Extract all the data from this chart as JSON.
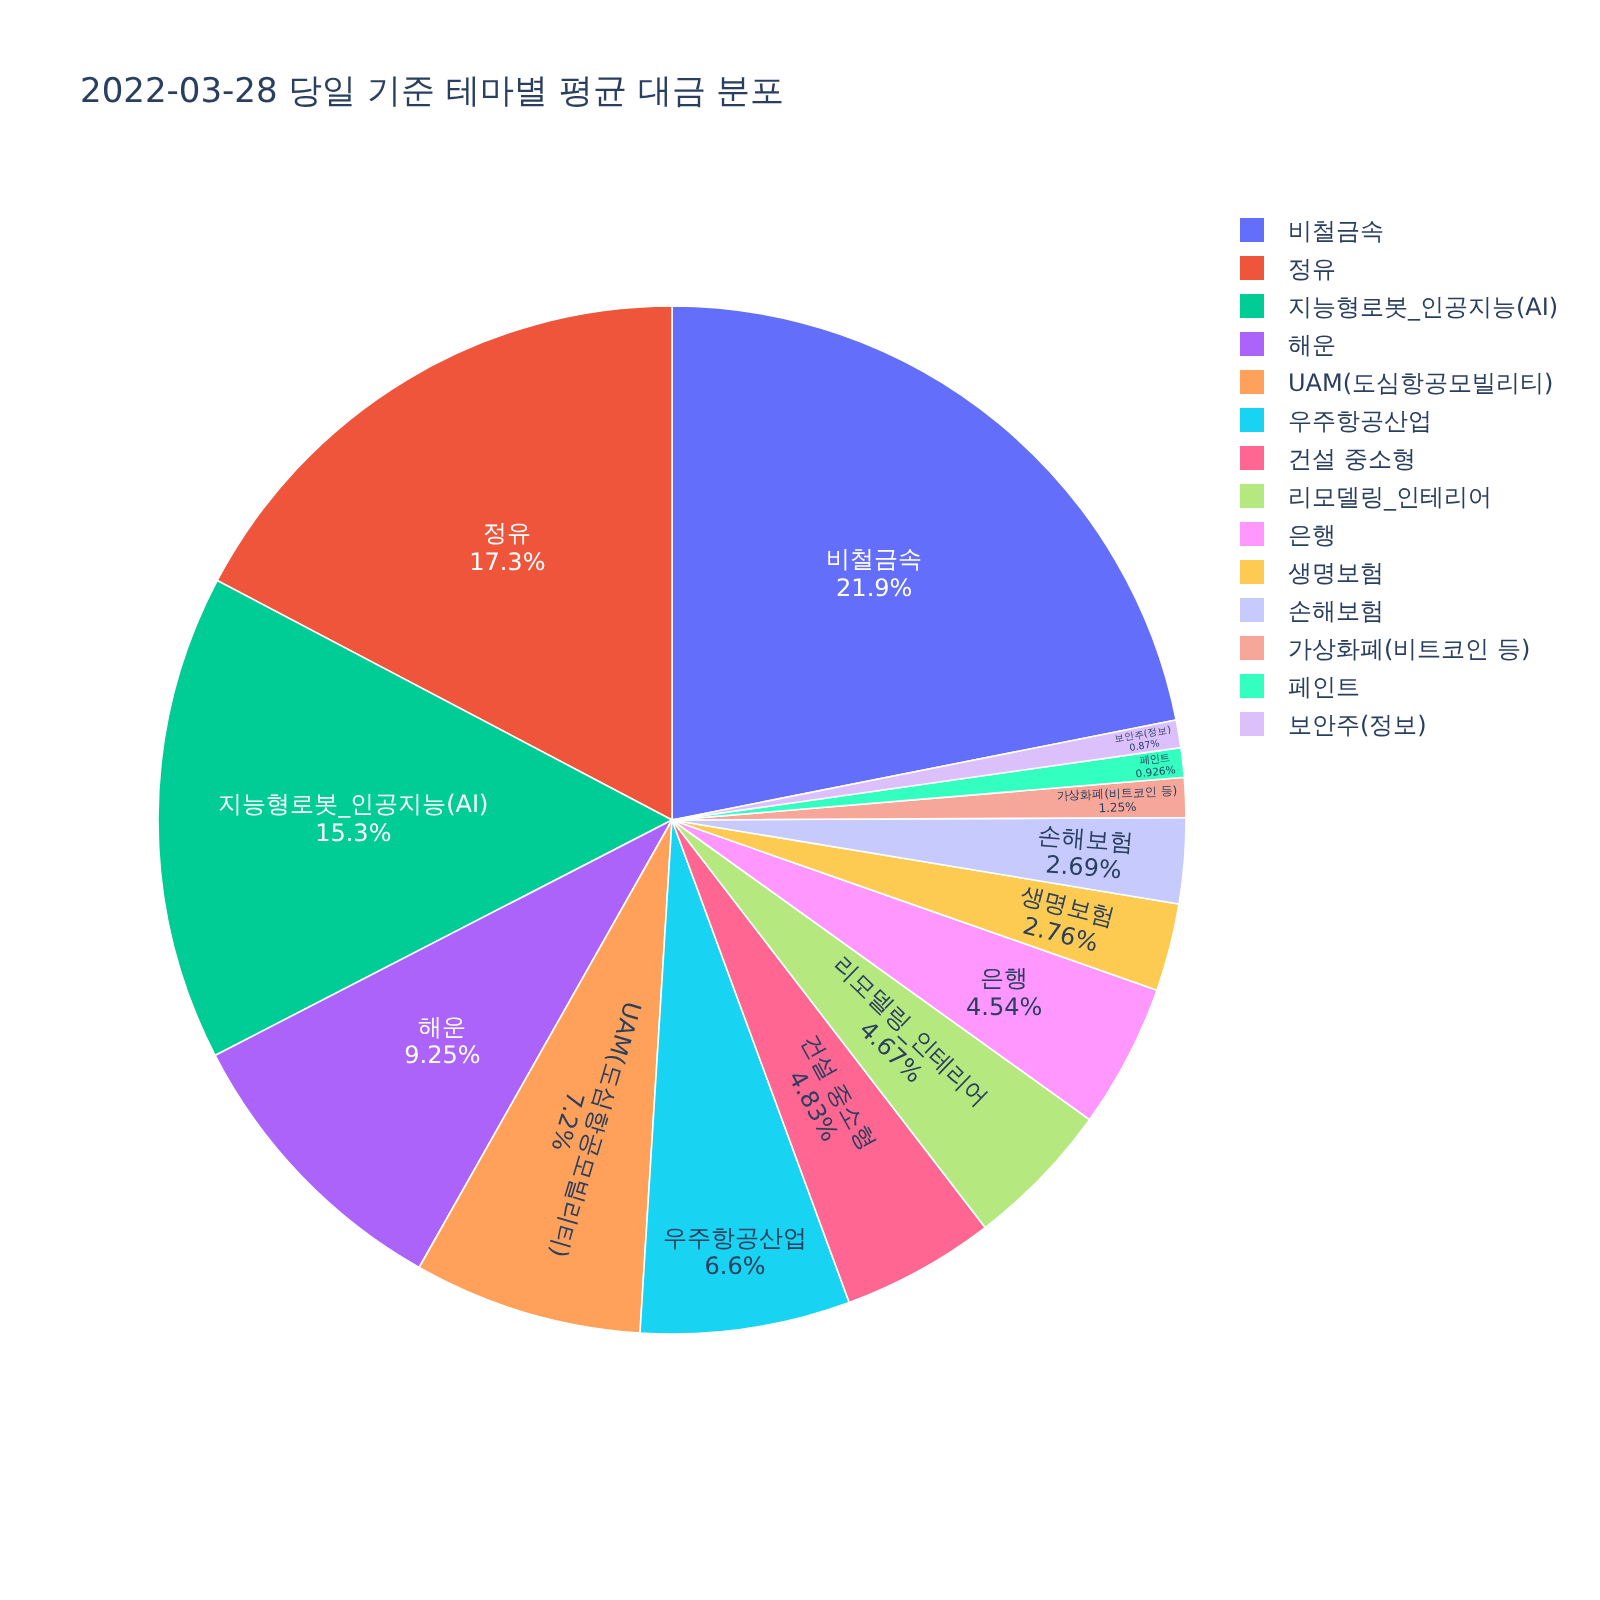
{
  "chart_data": {
    "type": "pie",
    "title": "2022-03-28 당일 기준 테마별 평균 대금 분포",
    "categories": [
      "비철금속",
      "정유",
      "지능형로봇_인공지능(AI)",
      "해운",
      "UAM(도심항공모빌리티)",
      "우주항공산업",
      "건설 중소형",
      "리모델링_인테리어",
      "은행",
      "생명보험",
      "손해보험",
      "가상화폐(비트코인 등)",
      "페인트",
      "보안주(정보)"
    ],
    "values": [
      21.9,
      17.3,
      15.3,
      9.25,
      7.2,
      6.6,
      4.83,
      4.67,
      4.54,
      2.76,
      2.69,
      1.25,
      0.926,
      0.87
    ],
    "colors": [
      "#636efa",
      "#ef553b",
      "#00cc96",
      "#ab63fa",
      "#ffa15a",
      "#19d3f3",
      "#ff6692",
      "#b6e880",
      "#ff97ff",
      "#fecb52",
      "#c6cafd",
      "#f7a799",
      "#33ffc0",
      "#dcc0fc"
    ],
    "value_labels": [
      "21.9%",
      "17.3%",
      "15.3%",
      "9.25%",
      "7.2%",
      "6.6%",
      "4.83%",
      "4.67%",
      "4.54%",
      "2.76%",
      "2.69%",
      "1.25%",
      "0.926%",
      "0.87%"
    ],
    "legend": "top right"
  }
}
